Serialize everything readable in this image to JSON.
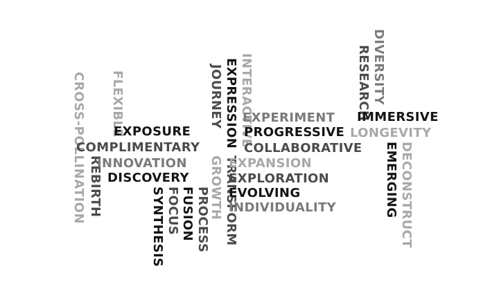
{
  "palette": {
    "black": "#141414",
    "dark": "#4b4b4b",
    "mid": "#7a7a7a",
    "light": "#a8a8a8"
  },
  "words": {
    "cross_pollination": "CROSS-POLLINATION",
    "rebirth": "REBIRTH",
    "flexible": "FLEXIBLE",
    "exposure": "EXPOSURE",
    "complimentary": "COMPLIMENTARY",
    "innovation": "INNOVATION",
    "discovery": "DISCOVERY",
    "synthesis": "SYNTHESIS",
    "focus": "FOCUS",
    "fusion": "FUSION",
    "process": "PROCESS",
    "journey": "JOURNEY",
    "growth": "GROWTH",
    "expression": "EXPRESSION",
    "transform": "TRANSFORM",
    "interactive": "INTERACTIVE",
    "experiment": "EXPERIMENT",
    "progressive": "PROGRESSIVE",
    "collaborative": "COLLABORATIVE",
    "expansion": "EXPANSION",
    "exploration": "EXPLORATION",
    "evolving": "EVOLVING",
    "individuality": "INDIVIDUALITY",
    "research": "RESEARCH",
    "diversity": "DIVERSITY",
    "immersive": "IMMERSIVE",
    "longevity": "LONGEVITY",
    "emerging": "EMERGING",
    "deconstruct": "DECONSTRUCT"
  }
}
